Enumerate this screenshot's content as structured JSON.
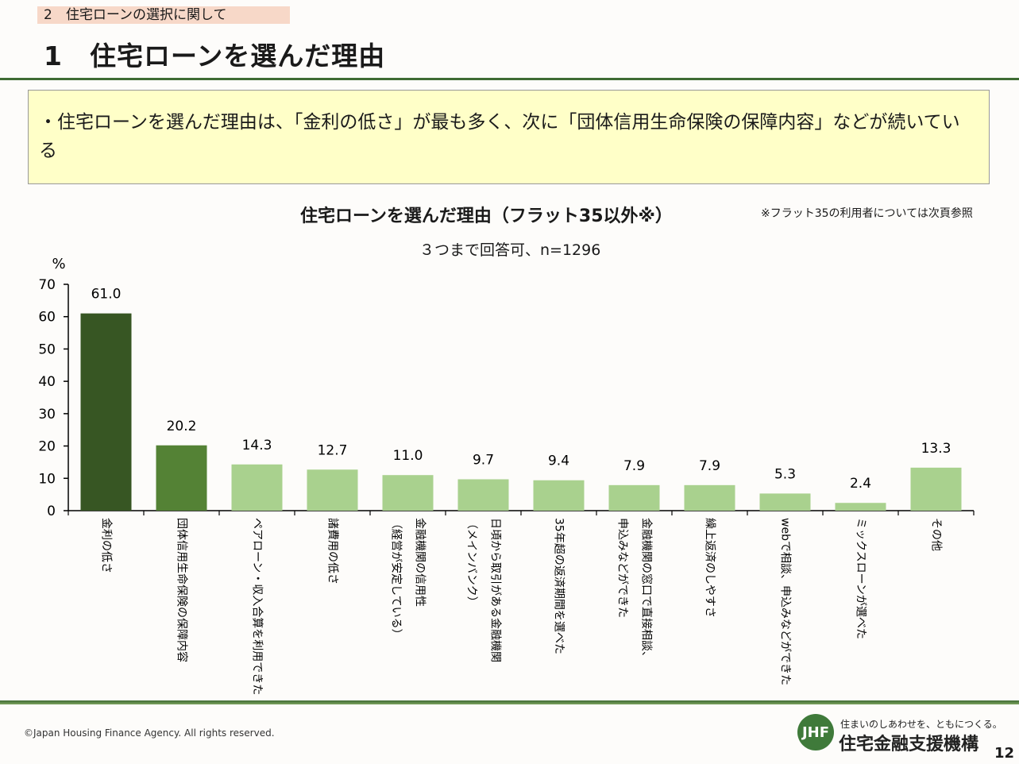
{
  "header": {
    "section": "2　住宅ローンの選択に関して",
    "title": "1　住宅ローンを選んだ理由"
  },
  "summary": "・住宅ローンを選んだ理由は、「金利の低さ」が最も多く、次に「団体信用生命保険の保障内容」などが続いている",
  "chart_note": "※フラット35の利用者については次頁参照",
  "chart_data": {
    "type": "bar",
    "title": "住宅ローンを選んだ理由（フラット35以外※）",
    "subtitle": "３つまで回答可、n=1296",
    "ylabel": "%",
    "ylim": [
      0,
      70
    ],
    "yticks": [
      0,
      10,
      20,
      30,
      40,
      50,
      60,
      70
    ],
    "grid": false,
    "categories": [
      "金利の低さ",
      "団体信用生命保険の保障内容",
      "ペアローン・収入合算を利用できた",
      "諸費用の低さ",
      "金融機関の信用性（経営が安定している）",
      "日頃から取引がある金融機関（メインバンク）",
      "35年超の返済期間を選べた",
      "金融機関の窓口で直接相談、申込みなどができた",
      "繰上返済のしやすさ",
      "webで相談、申込みなどができた",
      "ミックスローンが選べた",
      "その他"
    ],
    "label_lines": [
      [
        "金利の低さ"
      ],
      [
        "団体信用生命保険の保障内容"
      ],
      [
        "ペアローン・収入合算を利用できた"
      ],
      [
        "諸費用の低さ"
      ],
      [
        "金融機関の信用性",
        "（経営が安定している）"
      ],
      [
        "日頃から取引がある金融機関",
        "（メインバンク）"
      ],
      [
        "35年超の返済期間を選べた"
      ],
      [
        "金融機関の窓口で直接相談、",
        "申込みなどができた"
      ],
      [
        "繰上返済のしやすさ"
      ],
      [
        "webで相談、申込みなどができた"
      ],
      [
        "ミックスローンが選べた"
      ],
      [
        "その他"
      ]
    ],
    "values": [
      61.0,
      20.2,
      14.3,
      12.7,
      11.0,
      9.7,
      9.4,
      7.9,
      7.9,
      5.3,
      2.4,
      13.3
    ],
    "colors": [
      "#375623",
      "#548235",
      "#a9d18e",
      "#a9d18e",
      "#a9d18e",
      "#a9d18e",
      "#a9d18e",
      "#a9d18e",
      "#a9d18e",
      "#a9d18e",
      "#a9d18e",
      "#a9d18e"
    ]
  },
  "footer": {
    "copyright": "©Japan Housing Finance Agency. All rights reserved.",
    "logo_mark": "JHF",
    "tagline": "住まいのしあわせを、ともにつくる。",
    "org_name": "住宅金融支援機構",
    "page_number": "12"
  }
}
